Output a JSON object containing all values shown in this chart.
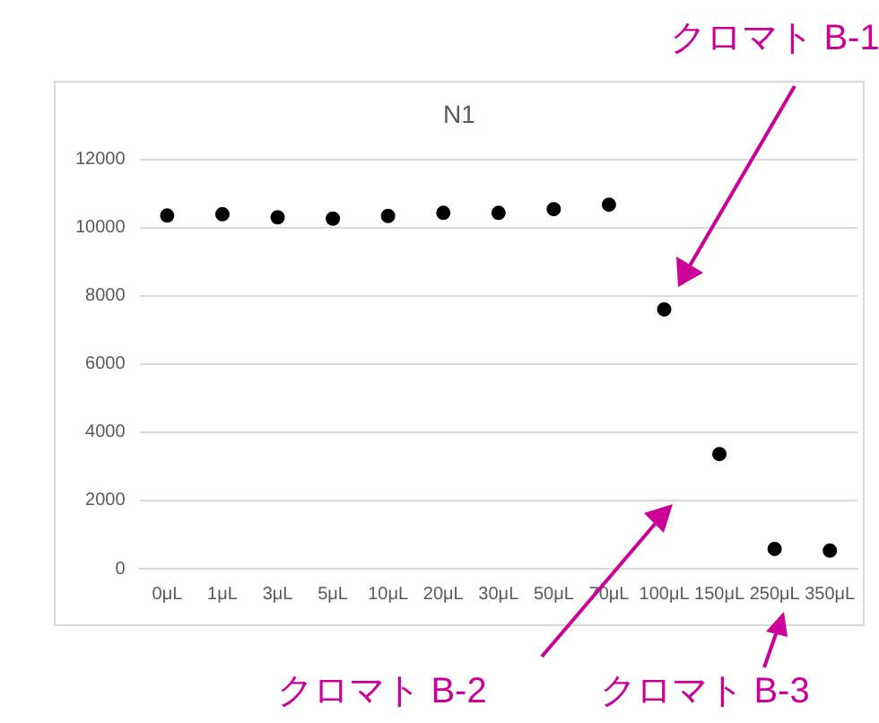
{
  "chart_data": {
    "type": "scatter",
    "title": "N1",
    "categories": [
      "0μL",
      "1μL",
      "3μL",
      "5μL",
      "10μL",
      "20μL",
      "30μL",
      "50μL",
      "70μL",
      "100μL",
      "150μL",
      "250μL",
      "350μL"
    ],
    "series": [
      {
        "color": "#000000",
        "values": [
          10350,
          10390,
          10300,
          10260,
          10340,
          10430,
          10430,
          10540,
          10670,
          7600,
          3360,
          580,
          530
        ]
      }
    ],
    "ylim": [
      0,
      12000
    ],
    "yticks": [
      0,
      2000,
      4000,
      6000,
      8000,
      10000,
      12000
    ],
    "grid": "y",
    "legend": false,
    "marker": "circle",
    "annotations": [
      "クロマト B-1",
      "クロマト B-2",
      "クロマト B-3"
    ]
  }
}
